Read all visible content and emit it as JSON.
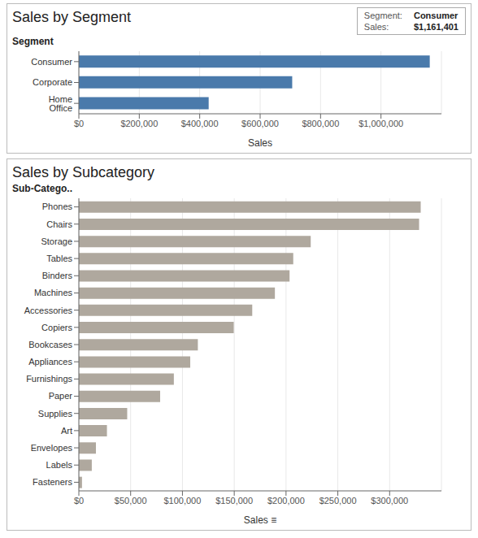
{
  "chart_data": [
    {
      "type": "bar",
      "orientation": "horizontal",
      "title": "Sales by Segment",
      "x_label": "Sales",
      "y_label": "Segment",
      "categories": [
        "Consumer",
        "Corporate",
        "Home Office"
      ],
      "values": [
        1161401,
        706146,
        429653
      ],
      "color": "#4A7AAB",
      "xlim": [
        0,
        1200000
      ],
      "xticks": [
        {
          "value": 0,
          "label": "$0"
        },
        {
          "value": 200000,
          "label": "$200,000"
        },
        {
          "value": 400000,
          "label": "$400,000"
        },
        {
          "value": 600000,
          "label": "$600,000"
        },
        {
          "value": 800000,
          "label": "$800,000"
        },
        {
          "value": 1000000,
          "label": "$1,000,000"
        }
      ],
      "grid": true,
      "annotations": [
        "Segment:",
        "Consumer",
        "Sales:",
        "$1,161,401"
      ]
    },
    {
      "type": "bar",
      "orientation": "horizontal",
      "title": "Sales by Subcategory",
      "x_label": "Sales  ≡",
      "y_label": "Sub-Catego..",
      "categories": [
        "Phones",
        "Chairs",
        "Storage",
        "Tables",
        "Binders",
        "Machines",
        "Accessories",
        "Copiers",
        "Bookcases",
        "Appliances",
        "Furnishings",
        "Paper",
        "Supplies",
        "Art",
        "Envelopes",
        "Labels",
        "Fasteners"
      ],
      "values": [
        330007,
        328449,
        223844,
        206966,
        203413,
        189239,
        167380,
        149528,
        114880,
        107532,
        91705,
        78479,
        46674,
        27119,
        16476,
        12486,
        3024
      ],
      "color": "#AFA89E",
      "xlim": [
        0,
        350000
      ],
      "xticks": [
        {
          "value": 0,
          "label": "$0"
        },
        {
          "value": 50000,
          "label": "$50,000"
        },
        {
          "value": 100000,
          "label": "$100,000"
        },
        {
          "value": 150000,
          "label": "$150,000"
        },
        {
          "value": 200000,
          "label": "$200,000"
        },
        {
          "value": 250000,
          "label": "$250,000"
        },
        {
          "value": 300000,
          "label": "$300,000"
        }
      ],
      "grid": true
    }
  ]
}
